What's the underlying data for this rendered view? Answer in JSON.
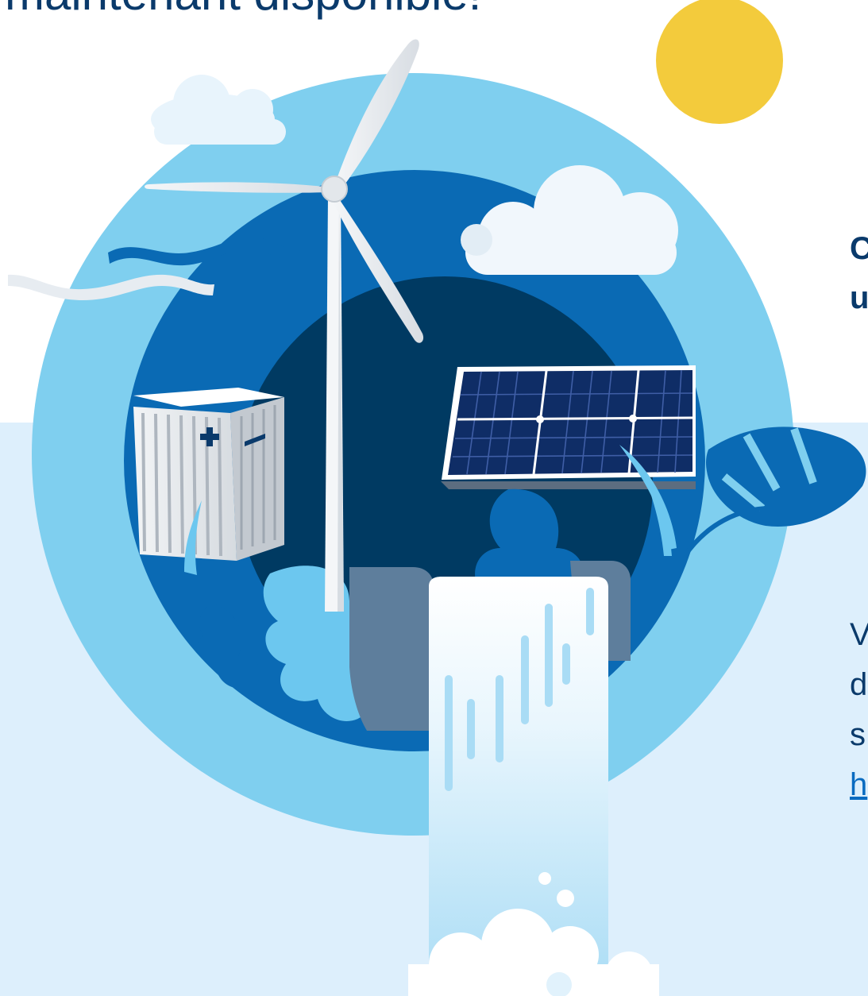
{
  "headline": "maintenant disponible!",
  "sidebar": {
    "heading_lines": [
      "C",
      "u"
    ],
    "body_lines": [
      "V",
      "d",
      "s"
    ],
    "link_text": "h"
  },
  "illustration": {
    "elements": [
      "sun",
      "clouds",
      "wind-turbine",
      "battery-container",
      "solar-panel",
      "waterfall",
      "leaves",
      "wind-lines"
    ],
    "colors": {
      "sun": "#f3cb3c",
      "sky_ring": "#7fcfef",
      "mid_ring": "#0a6ab4",
      "deep_core": "#003a62",
      "navy_text": "#0a3a6b",
      "light_bg": "#ddeffc"
    }
  }
}
